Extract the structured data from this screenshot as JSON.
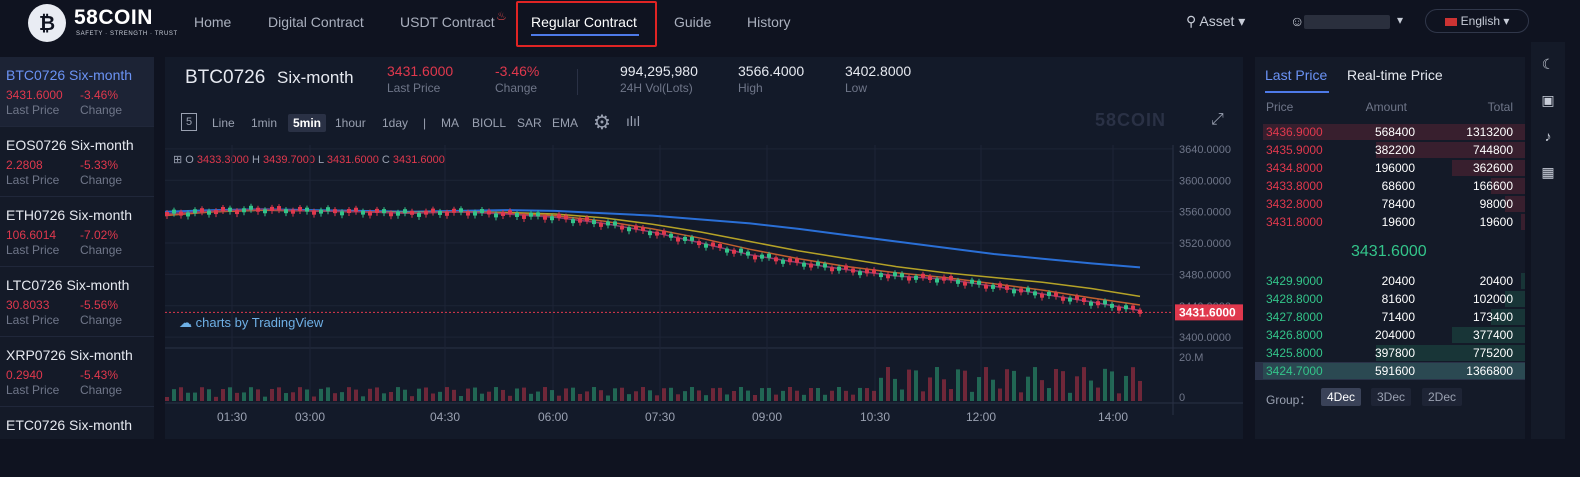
{
  "brand": {
    "name": "58COIN",
    "tagline": "SAFETY · STRENGTH · TRUST",
    "logo_glyph": "₿"
  },
  "nav": [
    {
      "label": "Home"
    },
    {
      "label": "Digital Contract"
    },
    {
      "label": "USDT Contract"
    },
    {
      "label": "Regular Contract"
    },
    {
      "label": "Guide"
    },
    {
      "label": "History"
    }
  ],
  "header_right": {
    "asset": "Asset",
    "language": "English"
  },
  "icons": {
    "asset": "asset-icon",
    "user": "user-icon",
    "fire": "fire-icon",
    "moon": "moon-icon",
    "wallet": "wallet-icon",
    "bell": "bell-icon",
    "calculator": "calculator-icon"
  },
  "sidebar": [
    {
      "name": "BTC0726 Six-month",
      "price": "3431.6000",
      "change": "-3.46%",
      "price_label": "Last Price",
      "change_label": "Change"
    },
    {
      "name": "EOS0726 Six-month",
      "price": "2.2808",
      "change": "-5.33%",
      "price_label": "Last Price",
      "change_label": "Change"
    },
    {
      "name": "ETH0726 Six-month",
      "price": "106.6014",
      "change": "-7.02%",
      "price_label": "Last Price",
      "change_label": "Change"
    },
    {
      "name": "LTC0726 Six-month",
      "price": "30.8033",
      "change": "-5.56%",
      "price_label": "Last Price",
      "change_label": "Change"
    },
    {
      "name": "XRP0726 Six-month",
      "price": "0.2940",
      "change": "-5.43%",
      "price_label": "Last Price",
      "change_label": "Change"
    },
    {
      "name": "ETC0726 Six-month"
    }
  ],
  "ticker": {
    "symbol": "BTC0726",
    "period": "Six-month",
    "last_price": "3431.6000",
    "last_price_label": "Last Price",
    "change": "-3.46%",
    "change_label": "Change",
    "volume": "994,295,980",
    "volume_label": "24H Vol(Lots)",
    "high": "3566.4000",
    "high_label": "High",
    "low": "3402.8000",
    "low_label": "Low"
  },
  "toolbar": {
    "chart_count": "5",
    "items": [
      "Line",
      "1min",
      "5min",
      "1hour",
      "1day",
      "|",
      "MA",
      "BIOLL",
      "SAR",
      "EMA"
    ],
    "selected": "5min",
    "watermark": "58COIN"
  },
  "ohlc": {
    "o_label": "O",
    "o": "3433.3000",
    "h_label": "H",
    "h": "3439.7000",
    "l_label": "L",
    "l": "3431.6000",
    "c_label": "C",
    "c": "3431.6000"
  },
  "tradingview": "charts by TradingView",
  "chart_data": {
    "type": "line",
    "x_ticks": [
      "01:30",
      "03:00",
      "04:30",
      "06:00",
      "07:30",
      "09:00",
      "10:30",
      "12:00",
      "14:00"
    ],
    "y_ticks": [
      "3640.0000",
      "3600.0000",
      "3560.0000",
      "3520.0000",
      "3480.0000",
      "3440.0000",
      "3400.0000"
    ],
    "volume_ticks": [
      "20.M",
      "0"
    ],
    "ylim": [
      3390,
      3645
    ],
    "current_price": "3431.6000",
    "series": [
      {
        "values": [
          3560,
          3562,
          3563,
          3562,
          3561,
          3560,
          3561,
          3562,
          3561,
          3558,
          3555,
          3550,
          3545,
          3538,
          3530,
          3522,
          3514,
          3506,
          3500,
          3494,
          3489
        ]
      },
      {
        "values": [
          3556,
          3560,
          3562,
          3561,
          3560,
          3559,
          3560,
          3559,
          3557,
          3552,
          3544,
          3534,
          3522,
          3510,
          3500,
          3490,
          3482,
          3476,
          3470,
          3462,
          3452
        ]
      },
      {
        "values": [
          3555,
          3560,
          3562,
          3561,
          3560,
          3558,
          3560,
          3558,
          3555,
          3548,
          3538,
          3526,
          3512,
          3500,
          3490,
          3482,
          3476,
          3468,
          3460,
          3450,
          3441
        ]
      },
      {
        "values": [
          3557,
          3561,
          3563,
          3561,
          3560,
          3558,
          3560,
          3557,
          3553,
          3545,
          3534,
          3520,
          3505,
          3495,
          3486,
          3478,
          3474,
          3465,
          3455,
          3445,
          3434
        ]
      }
    ],
    "colors": {
      "grid": "#1d2436",
      "up": "#33c48a",
      "down": "#e0384d",
      "ma1": "#2a6fd6",
      "ma2": "#b4a227",
      "ma3": "#c0602e",
      "ma4": "#8a3b6e"
    }
  },
  "orderbook": {
    "tabs": [
      "Last Price",
      "Real-time Price"
    ],
    "headers": [
      "Price",
      "Amount",
      "Total"
    ],
    "asks": [
      {
        "price": "3436.9000",
        "amount": "568400",
        "total": "1313200",
        "depth": 1.0
      },
      {
        "price": "3435.9000",
        "amount": "382200",
        "total": "744800",
        "depth": 0.57
      },
      {
        "price": "3434.8000",
        "amount": "196000",
        "total": "362600",
        "depth": 0.28
      },
      {
        "price": "3433.8000",
        "amount": "68600",
        "total": "166600",
        "depth": 0.13
      },
      {
        "price": "3432.8000",
        "amount": "78400",
        "total": "98000",
        "depth": 0.075
      },
      {
        "price": "3431.8000",
        "amount": "19600",
        "total": "19600",
        "depth": 0.015
      }
    ],
    "mid_price": "3431.6000",
    "bids": [
      {
        "price": "3429.9000",
        "amount": "20400",
        "total": "20400",
        "depth": 0.015
      },
      {
        "price": "3428.8000",
        "amount": "81600",
        "total": "102000",
        "depth": 0.075
      },
      {
        "price": "3427.8000",
        "amount": "71400",
        "total": "173400",
        "depth": 0.13
      },
      {
        "price": "3426.8000",
        "amount": "204000",
        "total": "377400",
        "depth": 0.28
      },
      {
        "price": "3425.8000",
        "amount": "397800",
        "total": "775200",
        "depth": 0.57
      },
      {
        "price": "3424.7000",
        "amount": "591600",
        "total": "1366800",
        "depth": 1.0
      }
    ],
    "group_label": "Group：",
    "groups": [
      "4Dec",
      "3Dec",
      "2Dec"
    ],
    "selected_group": "4Dec"
  }
}
